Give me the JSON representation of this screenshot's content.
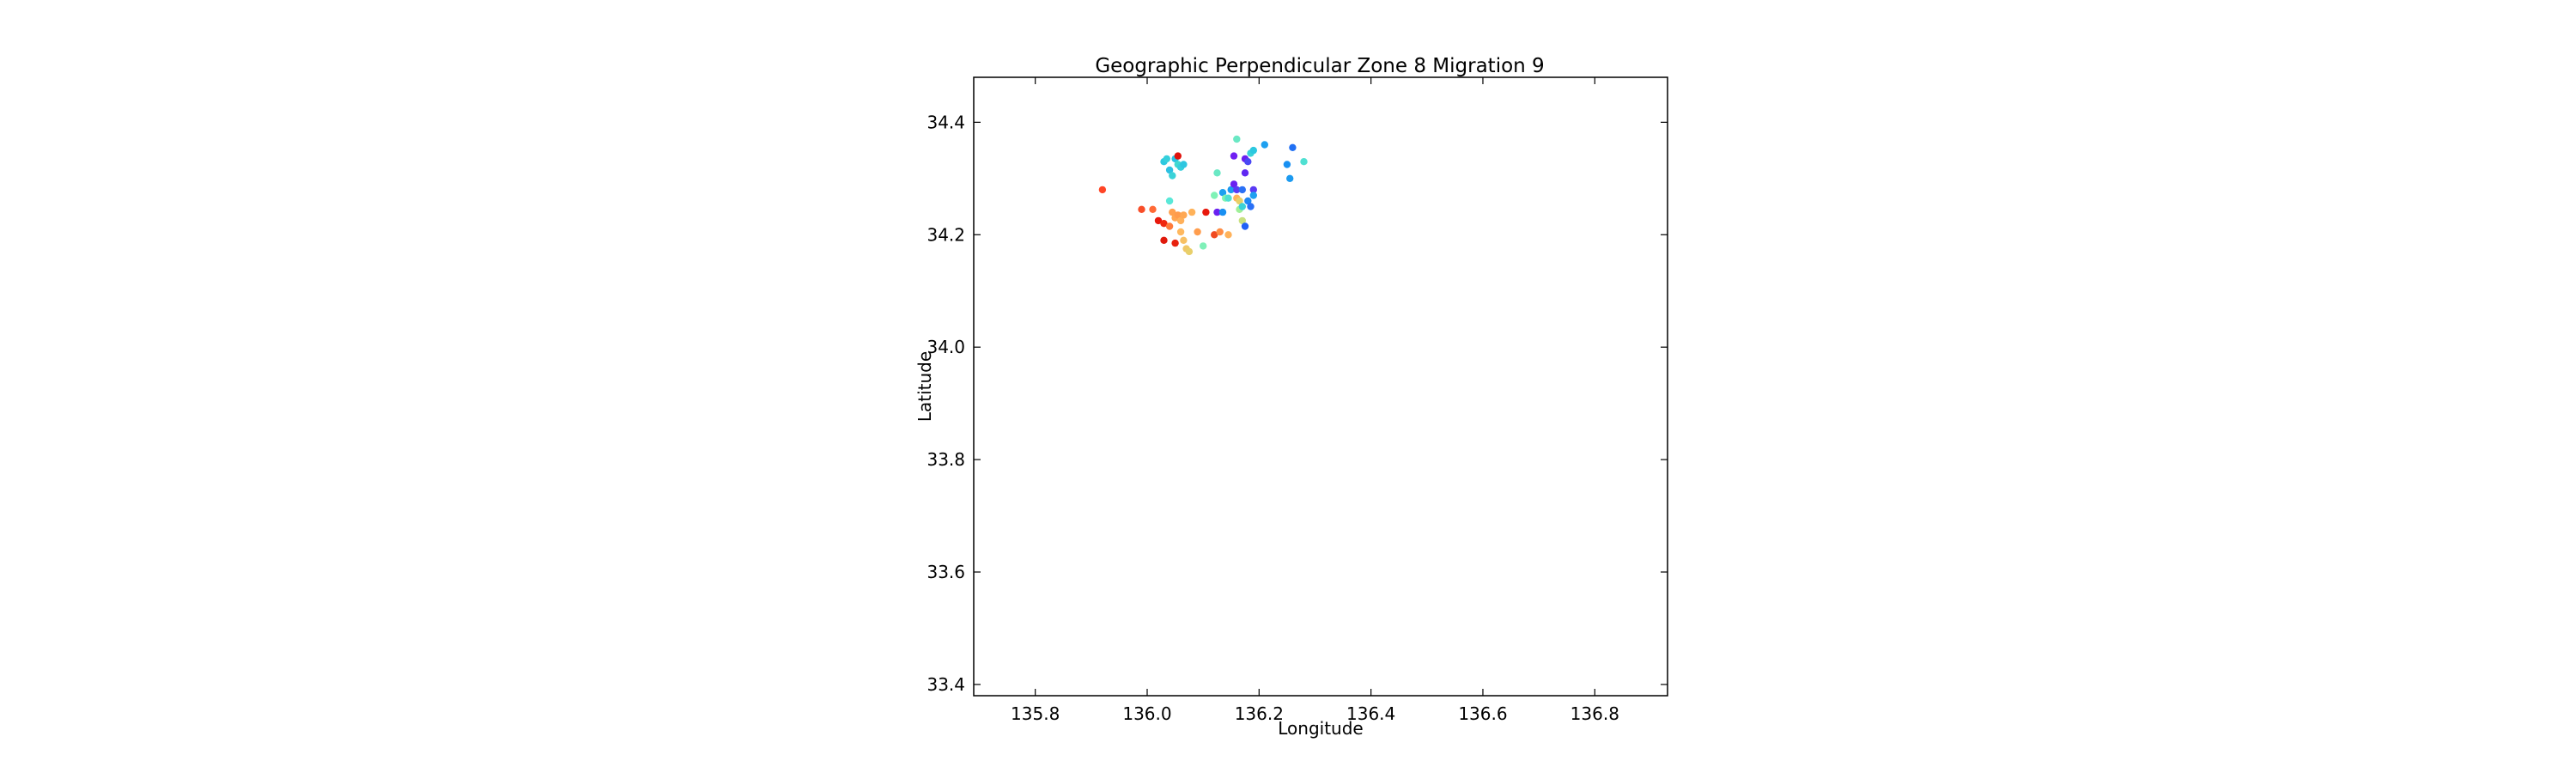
{
  "chart_data": {
    "type": "scatter",
    "title": "Geographic Perpendicular Zone 8 Migration 9",
    "xlabel": "Longitude",
    "ylabel": "Latitude",
    "xlim": [
      135.69,
      136.93
    ],
    "ylim": [
      33.38,
      34.48
    ],
    "xticks": [
      135.8,
      136.0,
      136.2,
      136.4,
      136.6,
      136.8
    ],
    "yticks": [
      33.4,
      33.6,
      33.8,
      34.0,
      34.2,
      34.4
    ],
    "grid": false,
    "colormap": "rainbow",
    "points": [
      {
        "x": 135.92,
        "y": 34.28,
        "color": "#ff4526"
      },
      {
        "x": 135.99,
        "y": 34.245,
        "color": "#f84d28"
      },
      {
        "x": 136.01,
        "y": 34.245,
        "color": "#ff6a36"
      },
      {
        "x": 136.02,
        "y": 34.225,
        "color": "#e8190d"
      },
      {
        "x": 136.03,
        "y": 34.22,
        "color": "#f0280f"
      },
      {
        "x": 136.03,
        "y": 34.19,
        "color": "#e01a0c"
      },
      {
        "x": 136.04,
        "y": 34.215,
        "color": "#ff7a3a"
      },
      {
        "x": 136.05,
        "y": 34.185,
        "color": "#e8220f"
      },
      {
        "x": 136.045,
        "y": 34.24,
        "color": "#ffa04f"
      },
      {
        "x": 136.05,
        "y": 34.23,
        "color": "#ffa550"
      },
      {
        "x": 136.055,
        "y": 34.235,
        "color": "#ff9b4c"
      },
      {
        "x": 136.06,
        "y": 34.225,
        "color": "#ffb05a"
      },
      {
        "x": 136.065,
        "y": 34.235,
        "color": "#ffa853"
      },
      {
        "x": 136.06,
        "y": 34.205,
        "color": "#ffb85e"
      },
      {
        "x": 136.065,
        "y": 34.19,
        "color": "#f7c064"
      },
      {
        "x": 136.07,
        "y": 34.175,
        "color": "#f0c767"
      },
      {
        "x": 136.075,
        "y": 34.17,
        "color": "#e8cf6a"
      },
      {
        "x": 136.08,
        "y": 34.24,
        "color": "#ffb259"
      },
      {
        "x": 136.09,
        "y": 34.205,
        "color": "#ff9d4d"
      },
      {
        "x": 136.1,
        "y": 34.18,
        "color": "#7ff0b8"
      },
      {
        "x": 136.105,
        "y": 34.24,
        "color": "#e8190d"
      },
      {
        "x": 136.12,
        "y": 34.2,
        "color": "#f04a20"
      },
      {
        "x": 136.13,
        "y": 34.205,
        "color": "#ff8d44"
      },
      {
        "x": 136.145,
        "y": 34.2,
        "color": "#ffb25a"
      },
      {
        "x": 136.04,
        "y": 34.26,
        "color": "#5ae8d8"
      },
      {
        "x": 136.03,
        "y": 34.33,
        "color": "#2cc8e0"
      },
      {
        "x": 136.035,
        "y": 34.335,
        "color": "#35d0dc"
      },
      {
        "x": 136.04,
        "y": 34.315,
        "color": "#2ec0e2"
      },
      {
        "x": 136.045,
        "y": 34.305,
        "color": "#3ad2d8"
      },
      {
        "x": 136.05,
        "y": 34.335,
        "color": "#28c2e4"
      },
      {
        "x": 136.055,
        "y": 34.325,
        "color": "#40d8d0"
      },
      {
        "x": 136.06,
        "y": 34.32,
        "color": "#36cfdc"
      },
      {
        "x": 136.065,
        "y": 34.325,
        "color": "#2dc6e0"
      },
      {
        "x": 136.055,
        "y": 34.34,
        "color": "#e0120c"
      },
      {
        "x": 136.12,
        "y": 34.27,
        "color": "#7ff2b6"
      },
      {
        "x": 136.125,
        "y": 34.31,
        "color": "#6ae8c4"
      },
      {
        "x": 136.125,
        "y": 34.24,
        "color": "#6a20f0"
      },
      {
        "x": 136.135,
        "y": 34.275,
        "color": "#1ea0f0"
      },
      {
        "x": 136.135,
        "y": 34.24,
        "color": "#1890f2"
      },
      {
        "x": 136.14,
        "y": 34.265,
        "color": "#80f4b0"
      },
      {
        "x": 136.145,
        "y": 34.265,
        "color": "#4fe0d2"
      },
      {
        "x": 136.15,
        "y": 34.28,
        "color": "#1c9af0"
      },
      {
        "x": 136.155,
        "y": 34.29,
        "color": "#6a20f0"
      },
      {
        "x": 136.155,
        "y": 34.34,
        "color": "#7020f2"
      },
      {
        "x": 136.16,
        "y": 34.28,
        "color": "#5a3af4"
      },
      {
        "x": 136.16,
        "y": 34.265,
        "color": "#ffb25a"
      },
      {
        "x": 136.165,
        "y": 34.26,
        "color": "#e8d068"
      },
      {
        "x": 136.165,
        "y": 34.245,
        "color": "#9ff098"
      },
      {
        "x": 136.16,
        "y": 34.37,
        "color": "#6ae8c4"
      },
      {
        "x": 136.17,
        "y": 34.28,
        "color": "#2a70f6"
      },
      {
        "x": 136.17,
        "y": 34.25,
        "color": "#3ad2d8"
      },
      {
        "x": 136.17,
        "y": 34.225,
        "color": "#c8e080"
      },
      {
        "x": 136.175,
        "y": 34.215,
        "color": "#2060f6"
      },
      {
        "x": 136.175,
        "y": 34.335,
        "color": "#6a20f0"
      },
      {
        "x": 136.175,
        "y": 34.31,
        "color": "#6028f2"
      },
      {
        "x": 136.18,
        "y": 34.33,
        "color": "#4a48f4"
      },
      {
        "x": 136.18,
        "y": 34.26,
        "color": "#1e88f4"
      },
      {
        "x": 136.185,
        "y": 34.25,
        "color": "#2a70f6"
      },
      {
        "x": 136.19,
        "y": 34.28,
        "color": "#5a3af4"
      },
      {
        "x": 136.19,
        "y": 34.27,
        "color": "#1ea0f0"
      },
      {
        "x": 136.185,
        "y": 34.345,
        "color": "#3ad2d8"
      },
      {
        "x": 136.19,
        "y": 34.35,
        "color": "#2cc8e0"
      },
      {
        "x": 136.21,
        "y": 34.36,
        "color": "#1ea0f0"
      },
      {
        "x": 136.25,
        "y": 34.325,
        "color": "#1890f2"
      },
      {
        "x": 136.255,
        "y": 34.3,
        "color": "#1c9af0"
      },
      {
        "x": 136.26,
        "y": 34.355,
        "color": "#2070f4"
      },
      {
        "x": 136.28,
        "y": 34.33,
        "color": "#4fe0d2"
      }
    ]
  }
}
